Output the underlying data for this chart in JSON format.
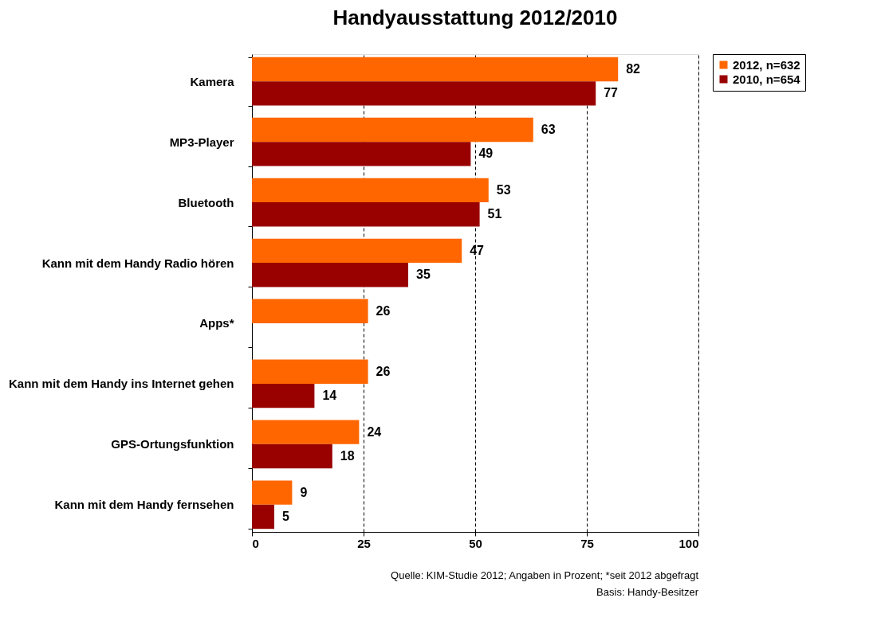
{
  "chart_data": {
    "type": "bar",
    "orientation": "horizontal",
    "title": "Handyausstattung 2012/2010",
    "categories": [
      "Kamera",
      "MP3-Player",
      "Bluetooth",
      "Kann mit dem Handy Radio hören",
      "Apps*",
      "Kann mit dem Handy ins Internet gehen",
      "GPS-Ortungsfunktion",
      "Kann mit dem Handy fernsehen"
    ],
    "series": [
      {
        "name": "2012, n=632",
        "color": "#ff6600",
        "values": [
          82,
          63,
          53,
          47,
          26,
          26,
          24,
          9
        ]
      },
      {
        "name": "2010, n=654",
        "color": "#990000",
        "values": [
          77,
          49,
          51,
          35,
          null,
          14,
          18,
          5
        ]
      }
    ],
    "xlim": [
      0,
      100
    ],
    "xticks": [
      0,
      25,
      50,
      75,
      100
    ],
    "grid": "x",
    "legend": "right",
    "data_labels": true,
    "annotations": [
      "Quelle: KIM-Studie 2012; Angaben in Prozent; *seit 2012 abgefragt",
      "Basis: Handy-Besitzer"
    ]
  }
}
